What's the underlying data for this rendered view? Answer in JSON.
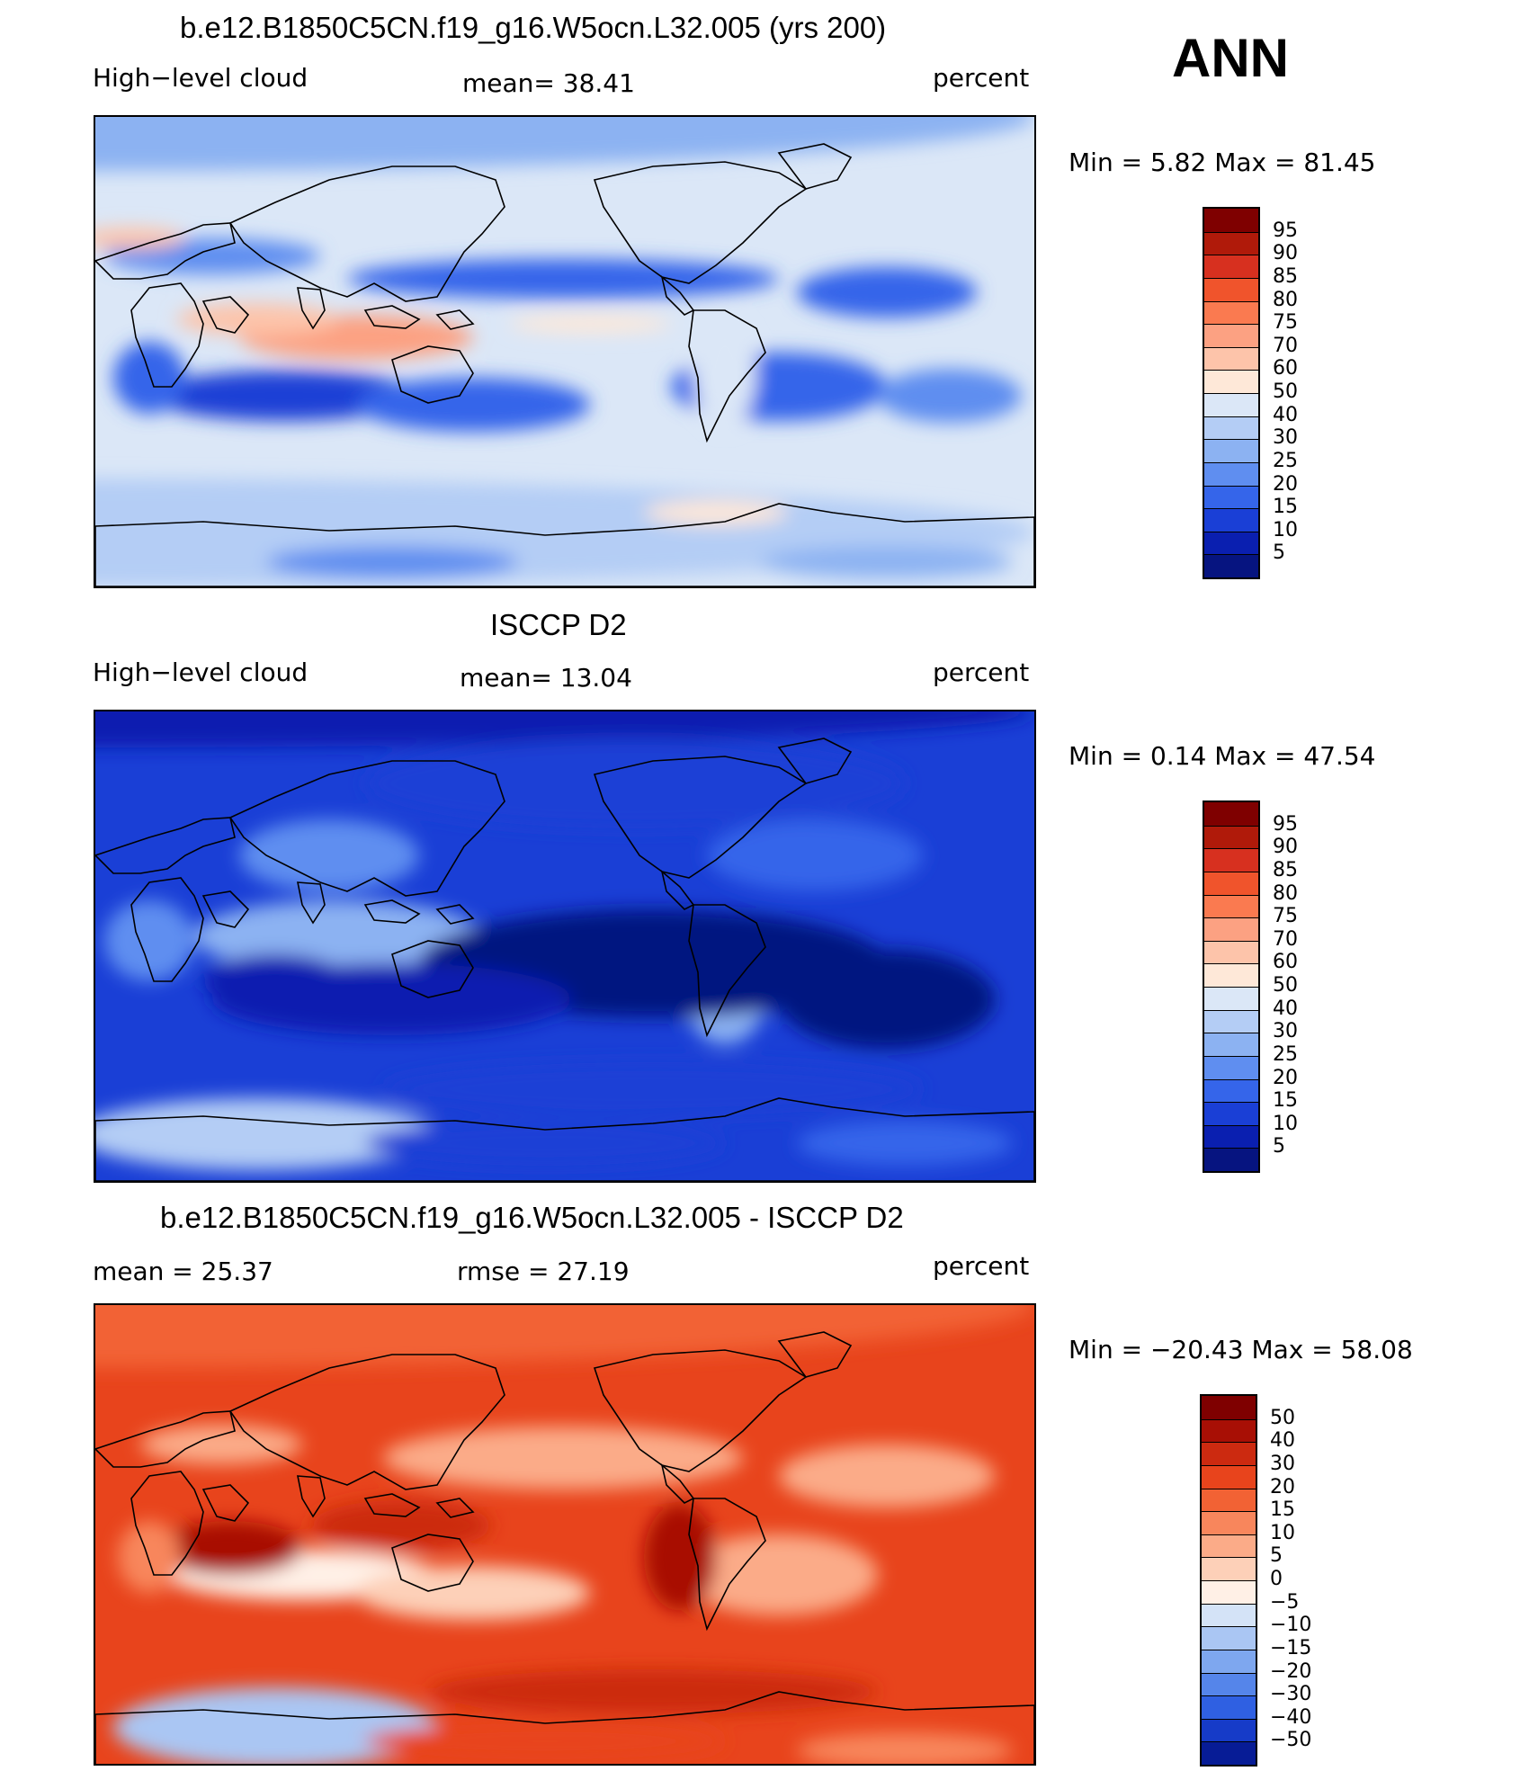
{
  "season": "ANN",
  "panels": [
    {
      "id": "model",
      "title": "b.e12.B1850C5CN.f19_g16.W5ocn.L32.005 (yrs 200)",
      "left_label": "High−level cloud",
      "center_label": "mean=   38.41",
      "units": "percent",
      "minmax": "Min =    5.82  Max =   81.45",
      "scale": "abs",
      "colorbar_labels": [
        "95",
        "90",
        "85",
        "80",
        "75",
        "70",
        "60",
        "50",
        "40",
        "30",
        "25",
        "20",
        "15",
        "10",
        "5"
      ]
    },
    {
      "id": "obs",
      "title": "ISCCP D2",
      "left_label": "High−level cloud",
      "center_label": "mean=   13.04",
      "units": "percent",
      "minmax": "Min =    0.14  Max =   47.54",
      "scale": "abs",
      "colorbar_labels": [
        "95",
        "90",
        "85",
        "80",
        "75",
        "70",
        "60",
        "50",
        "40",
        "30",
        "25",
        "20",
        "15",
        "10",
        "5"
      ]
    },
    {
      "id": "diff",
      "title": "b.e12.B1850C5CN.f19_g16.W5ocn.L32.005 - ISCCP D2",
      "left_label": "mean =   25.37",
      "center_label": "rmse =   27.19",
      "units": "percent",
      "minmax": "Min = −20.43  Max =   58.08",
      "scale": "diff",
      "colorbar_labels": [
        "50",
        "40",
        "30",
        "20",
        "15",
        "10",
        "5",
        "0",
        "−5",
        "−10",
        "−15",
        "−20",
        "−30",
        "−40",
        "−50"
      ]
    }
  ],
  "colors": {
    "abs_scale": [
      "#7f0000",
      "#b01a0a",
      "#d7301f",
      "#f0542c",
      "#fa7a50",
      "#fca182",
      "#fdc4aa",
      "#fee8d8",
      "#dbe7f7",
      "#b4cdf5",
      "#8cb2f2",
      "#5f8ef0",
      "#3565ea",
      "#1a3fd6",
      "#0a1fb0",
      "#061480"
    ],
    "diff_scale": [
      "#7f0000",
      "#a80f05",
      "#cc2a10",
      "#e8441c",
      "#f26234",
      "#f8865c",
      "#fbab88",
      "#fdd0b8",
      "#fff0e6",
      "#d4e3f7",
      "#aac6f3",
      "#7ea7ef",
      "#5585ea",
      "#2f60e2",
      "#163bc8",
      "#071c96"
    ]
  }
}
